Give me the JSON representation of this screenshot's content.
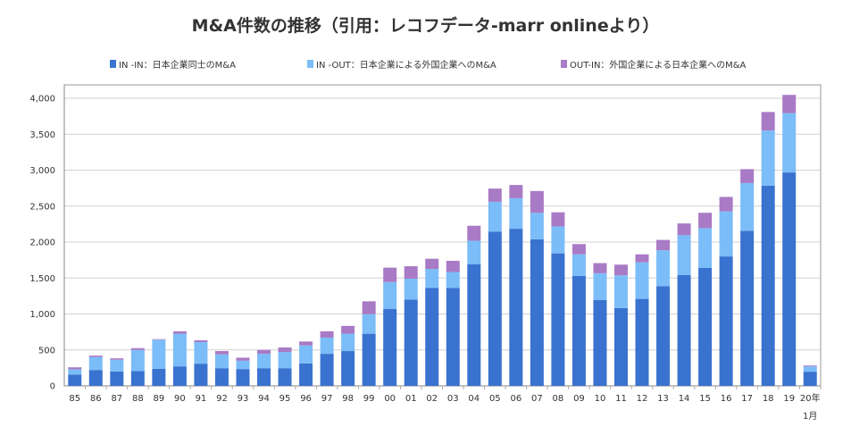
{
  "chart_data": {
    "type": "bar",
    "stacked": true,
    "title": "M&A件数の推移（引用：レコフデータ-marr onlineより）",
    "xlabel": "",
    "ylabel": "",
    "ylim": [
      0,
      4000
    ],
    "yticks": [
      "0",
      "500",
      "1,000",
      "1,500",
      "2,000",
      "2,500",
      "3,000",
      "3,500",
      "4,000"
    ],
    "grid": true,
    "legend_position": "top",
    "categories": [
      "85",
      "86",
      "87",
      "88",
      "89",
      "90",
      "91",
      "92",
      "93",
      "94",
      "95",
      "96",
      "97",
      "98",
      "99",
      "00",
      "01",
      "02",
      "03",
      "04",
      "05",
      "06",
      "07",
      "08",
      "09",
      "10",
      "11",
      "12",
      "13",
      "14",
      "15",
      "16",
      "17",
      "18",
      "19",
      "20年1月"
    ],
    "series": [
      {
        "name": "IN -IN：日本企業同士のM&A",
        "color": "#3a72d0",
        "values": [
          158,
          221,
          200,
          208,
          238,
          271,
          309,
          246,
          234,
          246,
          246,
          313,
          446,
          484,
          725,
          1068,
          1200,
          1364,
          1364,
          1693,
          2143,
          2185,
          2039,
          1843,
          1530,
          1195,
          1083,
          1210,
          1386,
          1542,
          1640,
          1800,
          2157,
          2784,
          2968,
          197
        ]
      },
      {
        "name": "IN -OUT：日本企業による外国企業へのM&A",
        "color": "#7bbdf8",
        "values": [
          71,
          179,
          163,
          292,
          404,
          455,
          300,
          192,
          116,
          200,
          225,
          250,
          225,
          242,
          273,
          376,
          291,
          262,
          220,
          325,
          417,
          425,
          367,
          375,
          300,
          372,
          455,
          508,
          500,
          553,
          554,
          627,
          664,
          767,
          825,
          74
        ]
      },
      {
        "name": "OUT-IN：外国企業による日本企業へのM&A",
        "color": "#a97ac5",
        "values": [
          29,
          21,
          20,
          25,
          8,
          33,
          25,
          46,
          42,
          54,
          63,
          54,
          88,
          108,
          178,
          200,
          173,
          142,
          155,
          209,
          184,
          184,
          304,
          196,
          142,
          140,
          148,
          111,
          144,
          164,
          213,
          201,
          193,
          258,
          254,
          12
        ]
      }
    ]
  }
}
